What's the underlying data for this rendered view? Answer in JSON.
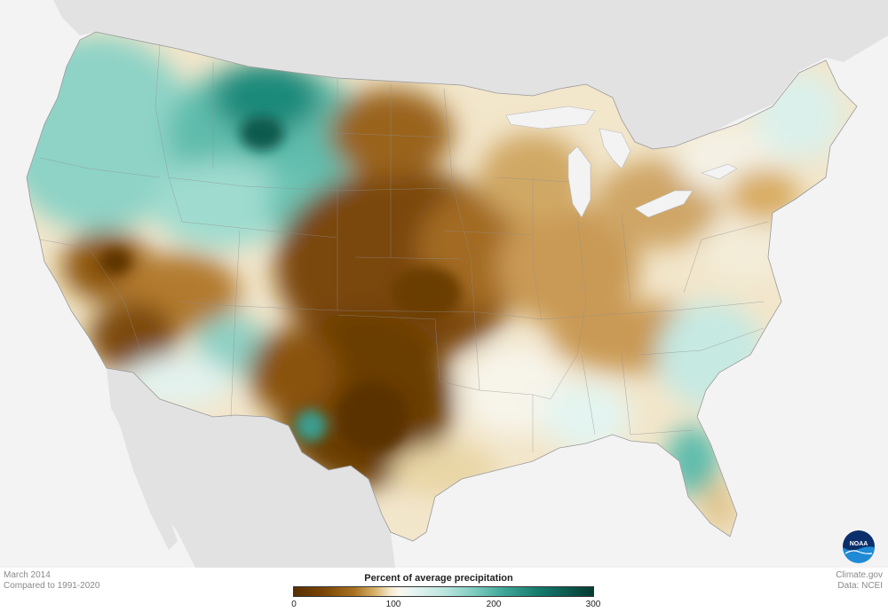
{
  "footer": {
    "date": "March 2014",
    "baseline": "Compared to 1991-2020",
    "source": "Climate.gov",
    "data_credit": "Data: NCEI"
  },
  "legend": {
    "title": "Percent of average precipitation",
    "ticks": [
      "0",
      "100",
      "200",
      "300"
    ],
    "range": [
      0,
      300
    ],
    "colors": {
      "dry_extreme": "#573000",
      "dry": "#a8701f",
      "normal": "#fbf7ee",
      "wet": "#3fa697",
      "wet_extreme": "#063b33"
    }
  },
  "logo": {
    "text": "NOAA"
  }
}
